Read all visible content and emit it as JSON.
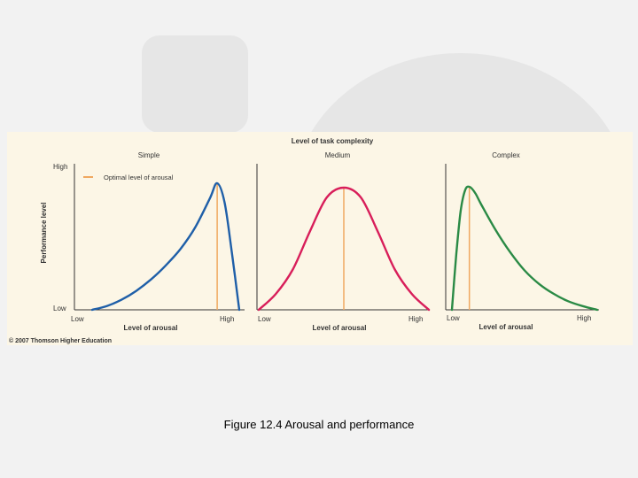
{
  "slide": {
    "caption": "Figure 12.4  Arousal and performance",
    "copyright": "© 2007 Thomson Higher Education"
  },
  "colors": {
    "panel_bg": "#fcf6e6",
    "optimal_line": "#f0a860",
    "simple": "#1f5fa8",
    "medium": "#d81e5a",
    "complex": "#2a8a45"
  },
  "chart_data": {
    "type": "line",
    "title": "Level of task complexity",
    "ylabel": "Performance level",
    "y_tick_labels": [
      "High",
      "Low"
    ],
    "legend": {
      "label": "Optimal level of arousal",
      "placement": "top-left"
    },
    "panels": [
      {
        "id": "simple",
        "subtitle": "Simple",
        "xlabel": "Level of arousal",
        "x_tick_labels": [
          "Low",
          "High"
        ],
        "color": "#1f5fa8",
        "optimal_x": 0.85,
        "x": [
          0.0,
          0.1,
          0.2,
          0.3,
          0.4,
          0.5,
          0.6,
          0.7,
          0.8,
          0.85,
          0.9,
          0.95,
          1.0
        ],
        "y": [
          0.0,
          0.03,
          0.08,
          0.15,
          0.24,
          0.35,
          0.48,
          0.65,
          0.88,
          1.0,
          0.85,
          0.45,
          0.0
        ]
      },
      {
        "id": "medium",
        "subtitle": "Medium",
        "xlabel": "Level of arousal",
        "x_tick_labels": [
          "Low",
          "High"
        ],
        "color": "#d81e5a",
        "optimal_x": 0.5,
        "x": [
          0.0,
          0.1,
          0.2,
          0.3,
          0.4,
          0.5,
          0.6,
          0.7,
          0.8,
          0.9,
          1.0
        ],
        "y": [
          0.0,
          0.13,
          0.33,
          0.64,
          0.92,
          1.0,
          0.92,
          0.64,
          0.33,
          0.13,
          0.0
        ]
      },
      {
        "id": "complex",
        "subtitle": "Complex",
        "xlabel": "Level of arousal",
        "x_tick_labels": [
          "Low",
          "High"
        ],
        "color": "#2a8a45",
        "optimal_x": 0.12,
        "x": [
          0.0,
          0.03,
          0.06,
          0.09,
          0.12,
          0.16,
          0.2,
          0.3,
          0.4,
          0.5,
          0.6,
          0.7,
          0.8,
          0.9,
          1.0
        ],
        "y": [
          0.0,
          0.45,
          0.8,
          0.97,
          1.0,
          0.95,
          0.86,
          0.65,
          0.47,
          0.32,
          0.21,
          0.13,
          0.07,
          0.03,
          0.0
        ]
      }
    ]
  }
}
